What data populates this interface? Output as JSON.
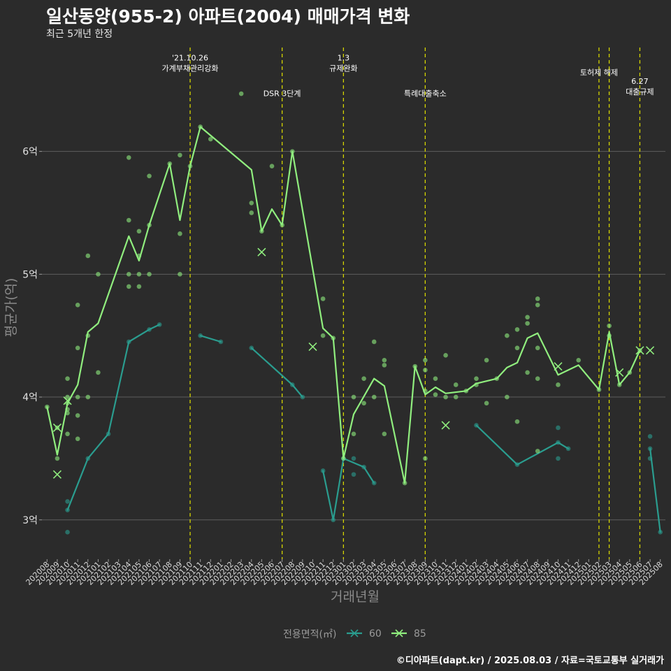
{
  "title": "일산동양(955-2) 아파트(2004) 매매가격 변화",
  "subtitle": "최근 5개년 한정",
  "caption": "©디아파트(dapt.kr) / 2025.08.03 / 자료=국토교통부 실거래가",
  "chart_data": {
    "type": "line",
    "xlabel": "거래년월",
    "ylabel": "평균가(억)",
    "ylim": [
      2.68,
      6.88
    ],
    "y_ticks": [
      3,
      4,
      5,
      6
    ],
    "y_tick_labels": [
      "3억",
      "4억",
      "5억",
      "6억"
    ],
    "categories": [
      "202008",
      "202009",
      "202010",
      "202011",
      "202012",
      "202101",
      "202102",
      "202103",
      "202104",
      "202105",
      "202106",
      "202107",
      "202108",
      "202109",
      "202110",
      "202111",
      "202112",
      "202201",
      "202202",
      "202203",
      "202204",
      "202205",
      "202206",
      "202207",
      "202208",
      "202209",
      "202210",
      "202211",
      "202212",
      "202301",
      "202302",
      "202303",
      "202304",
      "202305",
      "202306",
      "202307",
      "202308",
      "202309",
      "202310",
      "202311",
      "202312",
      "202401",
      "202402",
      "202403",
      "202404",
      "202405",
      "202406",
      "202407",
      "202408",
      "202409",
      "202410",
      "202411",
      "202412",
      "202501",
      "202502",
      "202503",
      "202504",
      "202505",
      "202506",
      "202507",
      "202508"
    ],
    "grid": true,
    "legend": {
      "title": "전용면적(㎡)",
      "position": "bottom"
    },
    "events": [
      {
        "x": "202110",
        "label": [
          "'21.10.26",
          "가계부채관리강화"
        ],
        "label_y": 6.74
      },
      {
        "x": "202207",
        "label": [
          "DSR 3단계"
        ],
        "label_y": 6.45
      },
      {
        "x": "202301",
        "label": [
          "1.3",
          "규제완화"
        ],
        "label_y": 6.74
      },
      {
        "x": "202309",
        "label": [
          "특례대출축소"
        ],
        "label_y": 6.45
      },
      {
        "x": "202502",
        "label": [
          "토허제 해제"
        ],
        "label_y": 6.62
      },
      {
        "x": "202503",
        "label": [],
        "label_y": 6.62
      },
      {
        "x": "202506",
        "label": [
          "6.27",
          "대출규제"
        ],
        "label_y": 6.55
      }
    ],
    "series": [
      {
        "name": "60",
        "color": "#2a9d8f",
        "line": [
          [
            "202010",
            3.08
          ],
          [
            "202012",
            3.5
          ],
          [
            "202102",
            3.7
          ],
          [
            "202104",
            4.45
          ],
          [
            "202106",
            4.55
          ],
          [
            "202107",
            4.59
          ],
          null,
          [
            "202111",
            4.5
          ],
          [
            "202201",
            4.45
          ],
          null,
          [
            "202204",
            4.4
          ],
          [
            "202208",
            4.1
          ],
          [
            "202209",
            4.0
          ],
          null,
          [
            "202211",
            3.4
          ],
          [
            "202212",
            3.0
          ],
          [
            "202301",
            3.5
          ],
          [
            "202303",
            3.43
          ],
          [
            "202304",
            3.3
          ],
          null,
          [
            "202402",
            3.77
          ],
          [
            "202406",
            3.45
          ],
          [
            "202410",
            3.63
          ],
          [
            "202411",
            3.58
          ],
          null,
          [
            "202507",
            3.58
          ],
          [
            "202508",
            2.9
          ]
        ],
        "points": [
          [
            "202010",
            3.08
          ],
          [
            "202010",
            3.15
          ],
          [
            "202010",
            2.9
          ],
          [
            "202012",
            3.5
          ],
          [
            "202102",
            3.7
          ],
          [
            "202104",
            4.45
          ],
          [
            "202106",
            4.55
          ],
          [
            "202107",
            4.59
          ],
          [
            "202111",
            4.5
          ],
          [
            "202201",
            4.45
          ],
          [
            "202204",
            4.4
          ],
          [
            "202208",
            4.1
          ],
          [
            "202209",
            4.0
          ],
          [
            "202211",
            3.4
          ],
          [
            "202212",
            3.0
          ],
          [
            "202301",
            3.5
          ],
          [
            "202302",
            3.5
          ],
          [
            "202302",
            3.37
          ],
          [
            "202303",
            3.43
          ],
          [
            "202304",
            3.3
          ],
          [
            "202402",
            3.77
          ],
          [
            "202406",
            3.45
          ],
          [
            "202410",
            3.63
          ],
          [
            "202410",
            3.5
          ],
          [
            "202410",
            3.75
          ],
          [
            "202411",
            3.58
          ],
          [
            "202507",
            3.58
          ],
          [
            "202507",
            3.5
          ],
          [
            "202507",
            3.68
          ],
          [
            "202508",
            2.9
          ]
        ],
        "crosses": []
      },
      {
        "name": "85",
        "color": "#90ee7e",
        "line": [
          [
            "202008",
            3.92
          ],
          [
            "202009",
            3.53
          ],
          [
            "202010",
            3.95
          ],
          [
            "202011",
            4.1
          ],
          [
            "202012",
            4.53
          ],
          [
            "202101",
            4.6
          ],
          [
            "202104",
            5.31
          ],
          [
            "202105",
            5.11
          ],
          [
            "202106",
            5.4
          ],
          [
            "202108",
            5.9
          ],
          [
            "202109",
            5.44
          ],
          [
            "202110",
            5.88
          ],
          [
            "202111",
            6.2
          ],
          [
            "202204",
            5.85
          ],
          [
            "202205",
            5.35
          ],
          [
            "202206",
            5.53
          ],
          [
            "202207",
            5.4
          ],
          [
            "202208",
            6.0
          ],
          [
            "202211",
            4.56
          ],
          [
            "202212",
            4.48
          ],
          [
            "202301",
            3.5
          ],
          [
            "202302",
            3.86
          ],
          [
            "202304",
            4.15
          ],
          [
            "202305",
            4.09
          ],
          [
            "202307",
            3.3
          ],
          [
            "202308",
            4.25
          ],
          [
            "202309",
            4.02
          ],
          [
            "202310",
            4.08
          ],
          [
            "202311",
            4.03
          ],
          [
            "202401",
            4.05
          ],
          [
            "202402",
            4.11
          ],
          [
            "202404",
            4.15
          ],
          [
            "202405",
            4.24
          ],
          [
            "202406",
            4.28
          ],
          [
            "202407",
            4.48
          ],
          [
            "202408",
            4.52
          ],
          [
            "202410",
            4.18
          ],
          [
            "202412",
            4.26
          ],
          [
            "202502",
            4.06
          ],
          [
            "202503",
            4.53
          ],
          [
            "202504",
            4.1
          ],
          [
            "202505",
            4.2
          ],
          [
            "202506",
            4.38
          ]
        ],
        "points": [
          [
            "202008",
            3.92
          ],
          [
            "202009",
            3.5
          ],
          [
            "202009",
            3.75
          ],
          [
            "202010",
            3.9
          ],
          [
            "202010",
            3.95
          ],
          [
            "202010",
            4.15
          ],
          [
            "202010",
            3.7
          ],
          [
            "202010",
            3.87
          ],
          [
            "202010",
            4.0
          ],
          [
            "202011",
            4.0
          ],
          [
            "202011",
            4.4
          ],
          [
            "202011",
            4.75
          ],
          [
            "202011",
            3.85
          ],
          [
            "202011",
            3.66
          ],
          [
            "202012",
            5.15
          ],
          [
            "202012",
            4.5
          ],
          [
            "202012",
            4.0
          ],
          [
            "202101",
            5.0
          ],
          [
            "202101",
            4.2
          ],
          [
            "202104",
            5.95
          ],
          [
            "202104",
            5.44
          ],
          [
            "202104",
            5.0
          ],
          [
            "202104",
            4.9
          ],
          [
            "202105",
            5.35
          ],
          [
            "202105",
            5.0
          ],
          [
            "202105",
            4.9
          ],
          [
            "202105",
            5.15
          ],
          [
            "202106",
            5.8
          ],
          [
            "202106",
            5.4
          ],
          [
            "202106",
            5.0
          ],
          [
            "202108",
            5.9
          ],
          [
            "202109",
            5.97
          ],
          [
            "202109",
            5.33
          ],
          [
            "202109",
            5.0
          ],
          [
            "202110",
            5.88
          ],
          [
            "202111",
            6.2
          ],
          [
            "202112",
            6.1
          ],
          [
            "202203",
            6.47
          ],
          [
            "202204",
            5.58
          ],
          [
            "202204",
            5.5
          ],
          [
            "202205",
            5.35
          ],
          [
            "202206",
            5.88
          ],
          [
            "202207",
            5.4
          ],
          [
            "202208",
            6.0
          ],
          [
            "202211",
            4.8
          ],
          [
            "202211",
            4.5
          ],
          [
            "202212",
            4.48
          ],
          [
            "202301",
            3.5
          ],
          [
            "202302",
            4.0
          ],
          [
            "202302",
            3.7
          ],
          [
            "202303",
            4.15
          ],
          [
            "202303",
            3.95
          ],
          [
            "202304",
            4.45
          ],
          [
            "202304",
            4.0
          ],
          [
            "202305",
            4.3
          ],
          [
            "202305",
            4.26
          ],
          [
            "202305",
            3.7
          ],
          [
            "202307",
            3.3
          ],
          [
            "202308",
            4.25
          ],
          [
            "202309",
            4.3
          ],
          [
            "202309",
            4.22
          ],
          [
            "202309",
            4.05
          ],
          [
            "202309",
            3.5
          ],
          [
            "202310",
            4.15
          ],
          [
            "202310",
            4.02
          ],
          [
            "202311",
            4.34
          ],
          [
            "202311",
            4.0
          ],
          [
            "202312",
            4.1
          ],
          [
            "202312",
            4.0
          ],
          [
            "202401",
            4.05
          ],
          [
            "202402",
            4.15
          ],
          [
            "202402",
            4.1
          ],
          [
            "202403",
            4.3
          ],
          [
            "202403",
            3.95
          ],
          [
            "202404",
            4.15
          ],
          [
            "202405",
            4.5
          ],
          [
            "202405",
            4.0
          ],
          [
            "202406",
            4.55
          ],
          [
            "202406",
            4.4
          ],
          [
            "202406",
            3.8
          ],
          [
            "202407",
            4.65
          ],
          [
            "202407",
            4.6
          ],
          [
            "202407",
            4.2
          ],
          [
            "202408",
            4.8
          ],
          [
            "202408",
            4.75
          ],
          [
            "202408",
            4.4
          ],
          [
            "202408",
            4.15
          ],
          [
            "202408",
            3.56
          ],
          [
            "202410",
            4.1
          ],
          [
            "202412",
            4.3
          ],
          [
            "202502",
            4.06
          ],
          [
            "202503",
            4.58
          ],
          [
            "202503",
            4.5
          ],
          [
            "202504",
            4.1
          ],
          [
            "202505",
            4.2
          ],
          [
            "202506",
            4.38
          ]
        ],
        "crosses": [
          [
            "202009",
            3.75
          ],
          [
            "202009",
            3.37
          ],
          [
            "202010",
            3.97
          ],
          [
            "202205",
            5.18
          ],
          [
            "202210",
            4.41
          ],
          [
            "202311",
            3.77
          ],
          [
            "202410",
            4.25
          ],
          [
            "202504",
            4.2
          ],
          [
            "202506",
            4.38
          ],
          [
            "202507",
            4.38
          ]
        ]
      }
    ]
  }
}
